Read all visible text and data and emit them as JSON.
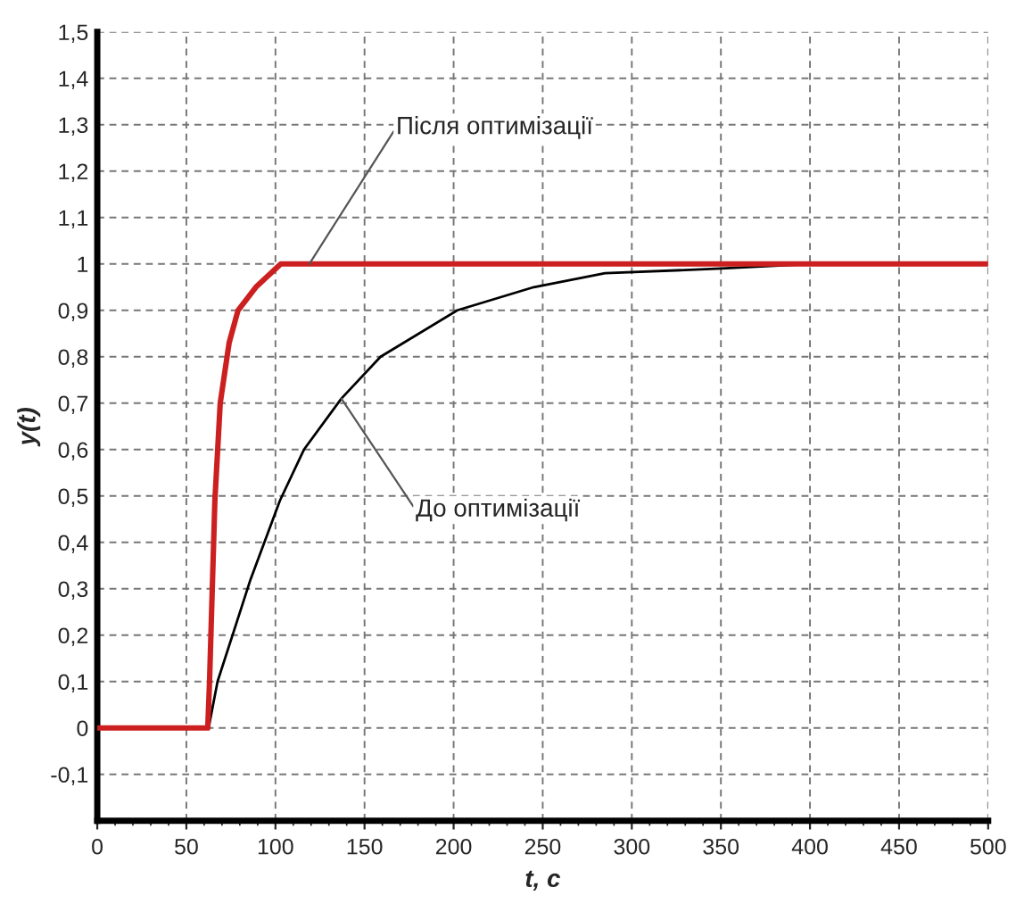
{
  "chart_data": {
    "type": "line",
    "xlabel": "t, c",
    "ylabel": "y(t)",
    "xlim": [
      0,
      500
    ],
    "ylim": [
      -0.2,
      1.5
    ],
    "xticks": [
      0,
      50,
      100,
      150,
      200,
      250,
      300,
      350,
      400,
      450,
      500
    ],
    "yticks": [
      {
        "value": -0.1,
        "label": "-0,1"
      },
      0,
      {
        "value": 0.1,
        "label": "0,1"
      },
      {
        "value": 0.2,
        "label": "0,2"
      },
      {
        "value": 0.3,
        "label": "0,3"
      },
      {
        "value": 0.4,
        "label": "0,4"
      },
      {
        "value": 0.5,
        "label": "0,5"
      },
      {
        "value": 0.6,
        "label": "0,6"
      },
      {
        "value": 0.7,
        "label": "0,7"
      },
      {
        "value": 0.8,
        "label": "0,8"
      },
      {
        "value": 0.9,
        "label": "0,9"
      },
      1,
      {
        "value": 1.1,
        "label": "1,1"
      },
      {
        "value": 1.2,
        "label": "1,2"
      },
      {
        "value": 1.3,
        "label": "1,3"
      },
      {
        "value": 1.4,
        "label": "1,4"
      },
      {
        "value": 1.5,
        "label": "1,5"
      }
    ],
    "grid": true,
    "marker": "none",
    "line_style": "solid",
    "series": [
      {
        "color": "#000000",
        "x": [
          0,
          62.5,
          67.5,
          86,
          102.5,
          116,
          137,
          159,
          202,
          245,
          285,
          350,
          400
        ],
        "values": [
          0,
          0,
          0.1,
          0.32,
          0.49,
          0.6,
          0.71,
          0.8,
          0.9,
          0.95,
          0.98,
          0.99,
          1.0
        ]
      },
      {
        "color": "#cc2020",
        "x": [
          0,
          62,
          63,
          66,
          69,
          74,
          79,
          89,
          103,
          500
        ],
        "values": [
          0,
          0,
          0.1,
          0.49,
          0.7,
          0.83,
          0.9,
          0.95,
          1.0,
          1.0
        ]
      }
    ],
    "annotations": [
      {
        "text": "Після оптимізації",
        "x": 119,
        "y": 1.0
      },
      {
        "text": "До оптимізації",
        "x": 137,
        "y": 0.71
      }
    ]
  }
}
